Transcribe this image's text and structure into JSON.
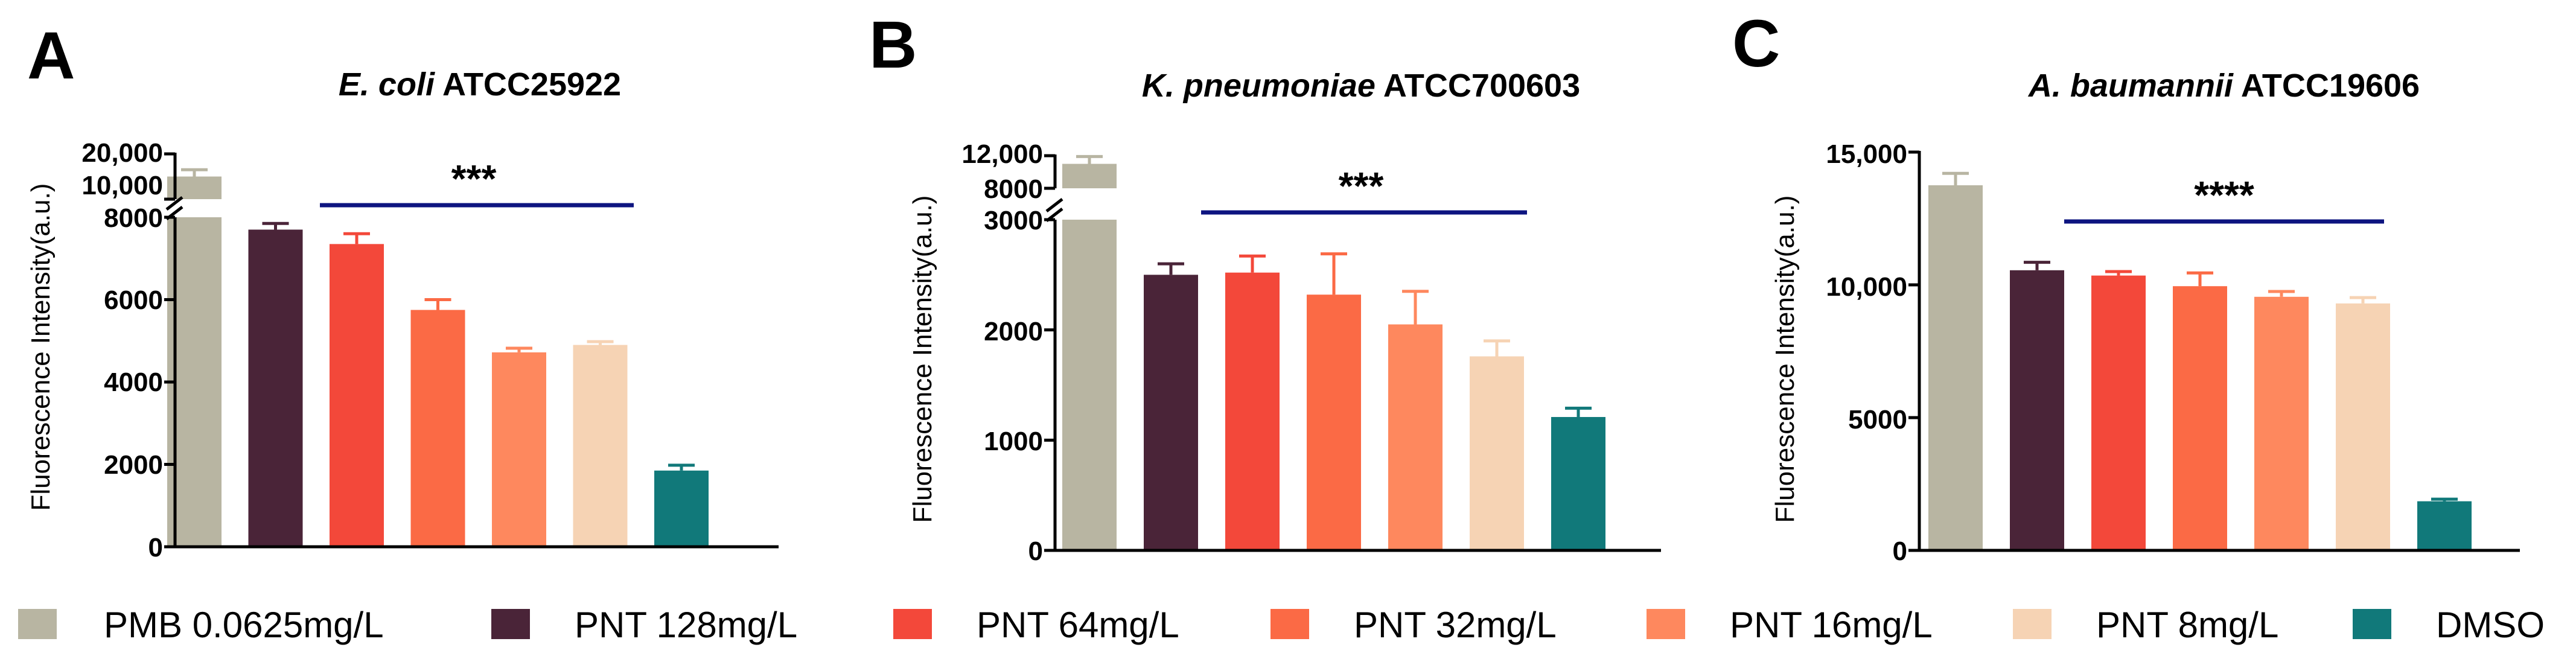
{
  "colors": {
    "PMB 0.0625mg/L": "#b8b5a2",
    "PNT 128mg/L": "#4a2438",
    "PNT 64mg/L": "#f3483a",
    "PNT 32mg/L": "#fb6a45",
    "PNT 16mg/L": "#fe885e",
    "PNT 8mg/L": "#f6d3b4",
    "DMSO": "#11797a",
    "sig_line": "#0d1480"
  },
  "legend": [
    "PMB 0.0625mg/L",
    "PNT 128mg/L",
    "PNT 64mg/L",
    "PNT 32mg/L",
    "PNT 16mg/L",
    "PNT 8mg/L",
    "DMSO"
  ],
  "chart_data": [
    {
      "type": "bar",
      "panel": "A",
      "title_italic": "E. coli",
      "title_rest": " ATCC25922",
      "ylabel": "Fluorescence Intensity(a.u.)",
      "categories": [
        "PMB 0.0625mg/L",
        "PNT 128mg/L",
        "PNT 64mg/L",
        "PNT 32mg/L",
        "PNT 16mg/L",
        "PNT 8mg/L",
        "DMSO"
      ],
      "values": [
        15000,
        7700,
        7350,
        5750,
        4720,
        4900,
        1850
      ],
      "errors": [
        1500,
        150,
        250,
        250,
        100,
        80,
        130
      ],
      "broken_axis": {
        "lower": [
          0,
          8000
        ],
        "upper": [
          8000,
          20000
        ]
      },
      "ticks": [
        "0",
        "2000",
        "4000",
        "6000",
        "8000",
        "10,000",
        "20,000"
      ],
      "significance": "***"
    },
    {
      "type": "bar",
      "panel": "B",
      "title_italic": "K. pneumoniae",
      "title_rest": " ATCC700603",
      "ylabel": "Fluorescence Intensity(a.u.)",
      "categories": [
        "PMB 0.0625mg/L",
        "PNT 128mg/L",
        "PNT 64mg/L",
        "PNT 32mg/L",
        "PNT 16mg/L",
        "PNT 8mg/L",
        "DMSO"
      ],
      "values": [
        11000,
        2500,
        2520,
        2320,
        2050,
        1760,
        1210
      ],
      "errors": [
        900,
        100,
        150,
        370,
        300,
        140,
        80
      ],
      "broken_axis": {
        "lower": [
          0,
          3000
        ],
        "upper": [
          3000,
          12000
        ]
      },
      "ticks": [
        "0",
        "1000",
        "2000",
        "3000",
        "8000",
        "12,000"
      ],
      "significance": "***"
    },
    {
      "type": "bar",
      "panel": "C",
      "title_italic": "A. baumannii",
      "title_rest": " ATCC19606",
      "ylabel": "Fluorescence Intensity(a.u.)",
      "categories": [
        "PMB 0.0625mg/L",
        "PNT 128mg/L",
        "PNT 64mg/L",
        "PNT 32mg/L",
        "PNT 16mg/L",
        "PNT 8mg/L",
        "DMSO"
      ],
      "values": [
        13750,
        10550,
        10350,
        9950,
        9550,
        9300,
        1850
      ],
      "errors": [
        450,
        300,
        150,
        500,
        200,
        220,
        80
      ],
      "ylim": [
        0,
        15000
      ],
      "ticks": [
        "0",
        "5000",
        "10,000",
        "15,000"
      ],
      "significance": "****"
    }
  ]
}
